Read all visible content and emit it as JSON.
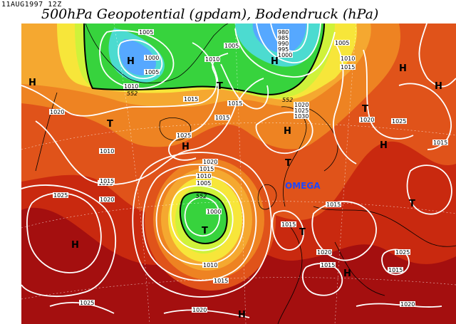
{
  "header": {
    "datetime": "11AUG1997 12Z",
    "title": "500hPa Geopotential (gpdam), Bodendruck (hPa)"
  },
  "annotation": "OMEGA",
  "colors": {
    "deep_red": "#a40f0f",
    "red": "#c9290f",
    "orange_red": "#e0531a",
    "orange": "#ee8322",
    "light_orange": "#f5a830",
    "yellow": "#f7e63a",
    "yellow_green": "#cff23a",
    "green": "#37d33d",
    "cyan": "#4cdbd0",
    "blue": "#56a8ff",
    "isobar": "#ffffff",
    "omega_label": "#1c47ff"
  },
  "height_contour_labels": [
    "552",
    "552",
    "552"
  ],
  "isobar_labels": [
    "1005",
    "1000",
    "1005",
    "1010",
    "1005",
    "980",
    "985",
    "990",
    "995",
    "1000",
    "1005",
    "1010",
    "1015",
    "1010",
    "1015",
    "1015",
    "1020",
    "1025",
    "1030",
    "1020",
    "1025",
    "1025",
    "1015",
    "1010",
    "1015",
    "1020",
    "1020",
    "1015",
    "1010",
    "1005",
    "1000",
    "1025",
    "1020",
    "1015",
    "1010",
    "1015",
    "1020",
    "1015",
    "1025",
    "1020",
    "1015",
    "1015",
    "1015",
    "1015",
    "1020",
    "1025"
  ],
  "pressure_centers": [
    "H",
    "H",
    "T",
    "T",
    "H",
    "H",
    "H",
    "T",
    "T",
    "H",
    "H",
    "T",
    "T",
    "T",
    "H",
    "H",
    "H",
    "H"
  ]
}
